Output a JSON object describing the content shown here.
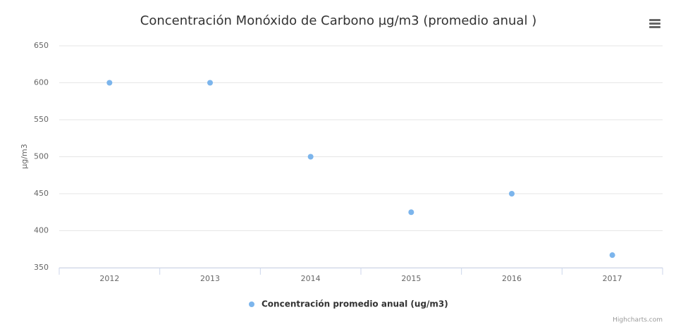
{
  "chart_data": {
    "type": "scatter",
    "title": "Concentración Monóxido de Carbono µg/m3 (promedio anual )",
    "y_label": "µg/m3",
    "categories": [
      "2012",
      "2013",
      "2014",
      "2015",
      "2016",
      "2017"
    ],
    "series": [
      {
        "name": "Concentración promedio anual (ug/m3)",
        "color": "#7cb5ec",
        "values": [
          600,
          600,
          500,
          425,
          450,
          367
        ]
      }
    ],
    "ylim": [
      350,
      650
    ],
    "yticks": [
      350,
      400,
      450,
      500,
      550,
      600,
      650
    ],
    "grid": true,
    "legend": "bottom",
    "credits": "Highcharts.com"
  }
}
